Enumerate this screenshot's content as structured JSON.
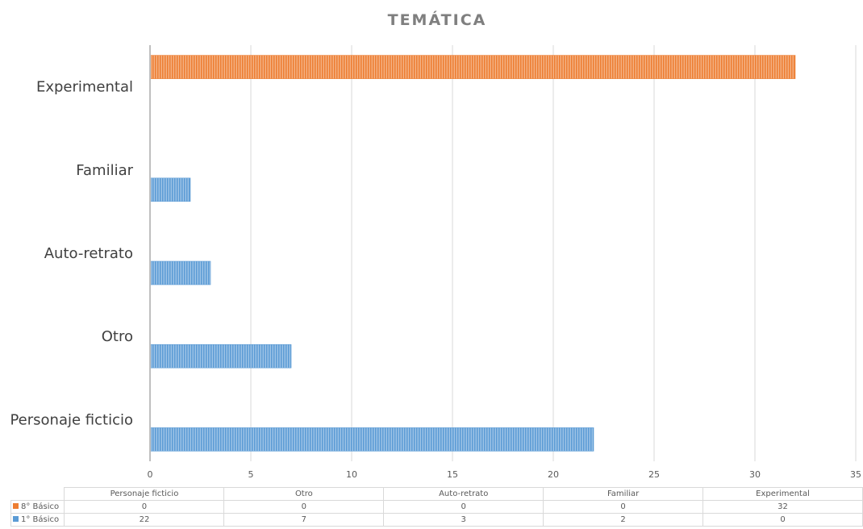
{
  "chart_data": {
    "type": "bar",
    "orientation": "horizontal",
    "title": "TEMÁTICA",
    "categories": [
      "Personaje ficticio",
      "Otro",
      "Auto-retrato",
      "Familiar",
      "Experimental"
    ],
    "series": [
      {
        "name": "8° Básico",
        "color": "#ed7d31",
        "values": [
          0,
          0,
          0,
          0,
          32
        ]
      },
      {
        "name": "1° Básico",
        "color": "#5b9bd5",
        "values": [
          22,
          7,
          3,
          2,
          0
        ]
      }
    ],
    "xlim": [
      0,
      35
    ],
    "xticks": [
      0,
      5,
      10,
      15,
      20,
      25,
      30,
      35
    ],
    "grid": true,
    "data_table": true
  }
}
